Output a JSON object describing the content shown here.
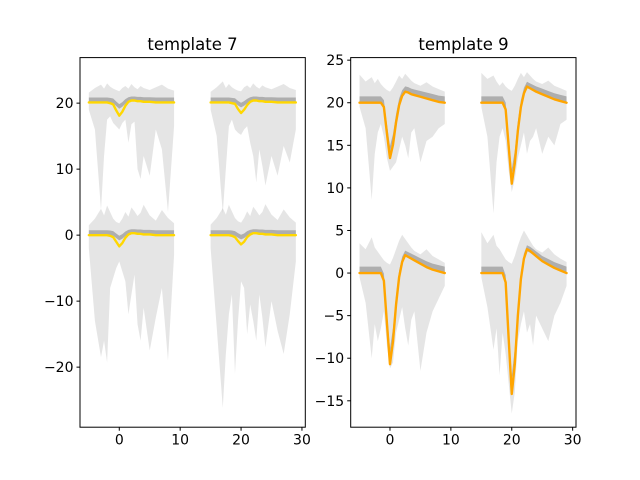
{
  "figure": {
    "background": "#ffffff",
    "text_color": "#000000",
    "axis_color": "#000000"
  },
  "chart_data": [
    {
      "type": "line",
      "title": "template 7",
      "line_color": "#FFD700",
      "outer_band_color": "rgba(0,0,0,0.10)",
      "inner_band_color": "rgba(0,0,0,0.24)",
      "xlim": [
        -6.45,
        30.55
      ],
      "ylim": [
        -29.1,
        26.9
      ],
      "xticks": [
        0,
        10,
        20,
        30
      ],
      "yticks": [
        -20,
        -10,
        0,
        10,
        20
      ],
      "t": [
        -5,
        -4,
        -3,
        -2.5,
        -2,
        -1.5,
        -1,
        -0.5,
        0,
        0.5,
        1,
        1.5,
        2,
        2.5,
        3,
        3.5,
        4,
        5,
        6,
        7,
        8,
        9
      ],
      "inner_band": {
        "offset_hi": 0.75,
        "offset_lo": 0.05,
        "follow": 0.5
      },
      "traces": [
        {
          "x_offset": 0,
          "baseline": 20.1,
          "mean": [
            20.1,
            20.1,
            20.1,
            20.1,
            20.1,
            20.0,
            19.8,
            18.9,
            18.1,
            18.7,
            19.6,
            20.2,
            20.4,
            20.4,
            20.3,
            20.3,
            20.2,
            20.2,
            20.1,
            20.1,
            20.1,
            20.1
          ],
          "outer_hi": [
            21.6,
            22.3,
            22.8,
            22.2,
            23.0,
            22.5,
            22.2,
            22.0,
            21.8,
            22.3,
            22.6,
            22.2,
            22.9,
            22.4,
            22.1,
            22.6,
            22.3,
            22.0,
            22.4,
            22.8,
            22.2,
            21.9
          ],
          "outer_lo": [
            19.0,
            16.0,
            3.8,
            12.0,
            17.5,
            18.0,
            17.0,
            16.5,
            16.0,
            17.0,
            17.5,
            14.0,
            16.8,
            17.2,
            10.0,
            8.5,
            12.0,
            9.0,
            16.0,
            13.0,
            3.5,
            16.5
          ]
        },
        {
          "x_offset": 20,
          "baseline": 20.1,
          "mean": [
            20.1,
            20.1,
            20.1,
            20.1,
            20.1,
            20.0,
            19.9,
            19.1,
            18.5,
            19.0,
            19.7,
            20.2,
            20.4,
            20.4,
            20.3,
            20.3,
            20.2,
            20.2,
            20.1,
            20.1,
            20.1,
            20.1
          ],
          "outer_hi": [
            21.7,
            22.4,
            23.3,
            22.3,
            22.9,
            22.4,
            22.1,
            21.9,
            21.8,
            22.4,
            22.7,
            22.3,
            23.0,
            22.5,
            22.2,
            22.7,
            22.4,
            22.1,
            22.5,
            22.9,
            22.3,
            22.0
          ],
          "outer_lo": [
            19.0,
            15.0,
            3.3,
            10.0,
            16.5,
            17.5,
            16.0,
            15.5,
            15.2,
            16.0,
            16.5,
            14.0,
            12.0,
            8.0,
            13.0,
            10.5,
            7.5,
            12.0,
            9.0,
            13.5,
            11.0,
            16.0
          ]
        },
        {
          "x_offset": 0,
          "baseline": 0,
          "mean": [
            0,
            0,
            0,
            0,
            0,
            -0.1,
            -0.3,
            -1.0,
            -1.7,
            -1.2,
            -0.4,
            0.1,
            0.3,
            0.3,
            0.2,
            0.2,
            0.1,
            0.1,
            0,
            0,
            0,
            0
          ],
          "outer_hi": [
            1.5,
            2.5,
            4.0,
            3.0,
            4.5,
            3.5,
            2.5,
            2.0,
            1.8,
            2.5,
            3.5,
            2.8,
            4.2,
            3.6,
            2.9,
            3.4,
            4.6,
            3.0,
            2.2,
            3.8,
            2.6,
            1.8
          ],
          "outer_lo": [
            -2.0,
            -13.0,
            -18.5,
            -16.0,
            -19.3,
            -8.0,
            -6.5,
            -5.0,
            -4.0,
            -5.5,
            -7.0,
            -12.0,
            -9.0,
            -6.0,
            -13.5,
            -16.0,
            -11.0,
            -17.5,
            -12.5,
            -8.0,
            -19.0,
            -3.0
          ]
        },
        {
          "x_offset": 20,
          "baseline": 0,
          "mean": [
            0,
            0,
            0,
            0,
            0,
            -0.1,
            -0.3,
            -0.9,
            -1.4,
            -1.0,
            -0.3,
            0.1,
            0.3,
            0.3,
            0.2,
            0.2,
            0.1,
            0.1,
            0,
            0,
            0,
            0
          ],
          "outer_hi": [
            1.6,
            2.6,
            4.1,
            3.1,
            4.6,
            3.6,
            2.6,
            2.1,
            1.9,
            2.6,
            3.6,
            2.9,
            4.3,
            3.7,
            3.0,
            3.5,
            4.7,
            3.1,
            2.3,
            3.9,
            2.7,
            1.9
          ],
          "outer_lo": [
            -2.0,
            -14.0,
            -26.2,
            -18.0,
            -12.0,
            -9.0,
            -21.0,
            -13.0,
            -7.0,
            -8.0,
            -15.0,
            -10.5,
            -13.0,
            -16.0,
            -9.0,
            -12.5,
            -17.0,
            -10.0,
            -14.5,
            -18.0,
            -12.0,
            -4.0
          ]
        }
      ]
    },
    {
      "type": "line",
      "title": "template 9",
      "line_color": "#FFA500",
      "outer_band_color": "rgba(0,0,0,0.10)",
      "inner_band_color": "rgba(0,0,0,0.24)",
      "xlim": [
        -6.45,
        30.55
      ],
      "ylim": [
        -18.1,
        25.3
      ],
      "xticks": [
        0,
        10,
        20,
        30
      ],
      "yticks": [
        -15,
        -10,
        -5,
        0,
        5,
        10,
        15,
        20,
        25
      ],
      "t": [
        -5,
        -4,
        -3,
        -2.5,
        -2,
        -1.5,
        -1,
        -0.5,
        0,
        0.5,
        1,
        1.5,
        2,
        2.5,
        3,
        3.5,
        4,
        5,
        6,
        7,
        8,
        9
      ],
      "inner_band": {
        "offset_hi": 0.75,
        "offset_lo": 0.05,
        "follow": 0.9
      },
      "traces": [
        {
          "x_offset": 0,
          "baseline": 20,
          "mean": [
            20,
            20,
            20,
            20,
            20,
            20,
            19.5,
            16.4,
            13.5,
            15.1,
            17.7,
            19.7,
            20.8,
            21.3,
            21.2,
            21.0,
            20.9,
            20.7,
            20.5,
            20.3,
            20.1,
            20
          ],
          "outer_hi": [
            23.3,
            22.5,
            23.0,
            22.3,
            22.8,
            22.2,
            21.8,
            21.5,
            21.3,
            21.8,
            22.5,
            23.2,
            22.8,
            23.4,
            23.0,
            22.6,
            22.3,
            22.0,
            22.4,
            21.9,
            21.6,
            21.3
          ],
          "outer_lo": [
            19.5,
            17.0,
            8.6,
            14.0,
            16.5,
            17.5,
            16.0,
            13.5,
            12.0,
            12.5,
            13.0,
            14.5,
            16.0,
            15.0,
            13.5,
            16.5,
            17.0,
            13.0,
            15.5,
            16.0,
            17.0,
            17.5
          ]
        },
        {
          "x_offset": 20,
          "baseline": 20,
          "mean": [
            20,
            20,
            20,
            20,
            20,
            20,
            19.2,
            14.8,
            10.5,
            12.9,
            16.7,
            19.5,
            21.1,
            21.9,
            21.7,
            21.5,
            21.3,
            21.0,
            20.7,
            20.4,
            20.2,
            20
          ],
          "outer_hi": [
            23.5,
            22.8,
            23.2,
            22.5,
            22.0,
            22.4,
            21.9,
            21.6,
            21.4,
            22.0,
            22.8,
            23.5,
            23.0,
            23.6,
            23.2,
            22.8,
            22.5,
            22.2,
            22.6,
            22.0,
            21.7,
            21.4
          ],
          "outer_lo": [
            19.5,
            16.0,
            7.0,
            13.0,
            16.0,
            17.0,
            15.5,
            12.0,
            9.5,
            11.0,
            13.5,
            15.0,
            16.5,
            14.0,
            15.5,
            16.0,
            17.0,
            14.0,
            16.0,
            15.0,
            17.5,
            18.0
          ]
        },
        {
          "x_offset": 0,
          "baseline": 0,
          "mean": [
            0,
            0,
            0,
            0,
            0,
            0,
            -0.9,
            -5.9,
            -10.7,
            -8.0,
            -3.7,
            -0.5,
            1.3,
            2.1,
            1.9,
            1.7,
            1.5,
            1.1,
            0.7,
            0.4,
            0.2,
            0
          ],
          "outer_hi": [
            3.5,
            2.8,
            4.2,
            3.0,
            2.5,
            2.0,
            1.5,
            1.2,
            1.0,
            1.8,
            2.8,
            3.8,
            4.5,
            4.0,
            3.5,
            3.0,
            2.6,
            2.2,
            2.8,
            2.0,
            1.6,
            1.2
          ],
          "outer_lo": [
            -0.5,
            -3.5,
            -10.0,
            -6.0,
            -8.0,
            -6.5,
            -4.5,
            -8.5,
            -11.2,
            -10.5,
            -7.0,
            -5.5,
            -4.0,
            -6.5,
            -8.5,
            -5.5,
            -4.5,
            -11.5,
            -7.0,
            -4.5,
            -3.0,
            -1.5
          ]
        },
        {
          "x_offset": 20,
          "baseline": 0,
          "mean": [
            0,
            0,
            0,
            0,
            0,
            0,
            -1.1,
            -7.8,
            -14.2,
            -10.7,
            -5.0,
            -0.7,
            1.7,
            2.8,
            2.6,
            2.3,
            2.0,
            1.4,
            1.0,
            0.6,
            0.3,
            0
          ],
          "outer_hi": [
            4.8,
            3.5,
            4.5,
            3.2,
            2.8,
            2.2,
            1.6,
            1.3,
            1.1,
            2.0,
            3.2,
            4.2,
            5.0,
            4.4,
            3.8,
            3.2,
            2.8,
            2.4,
            3.0,
            2.2,
            1.7,
            1.3
          ],
          "outer_lo": [
            -0.5,
            -4.0,
            -9.0,
            -6.5,
            -12.0,
            -7.0,
            -9.5,
            -13.0,
            -16.5,
            -14.0,
            -8.0,
            -6.0,
            -4.5,
            -7.0,
            -6.0,
            -8.5,
            -5.0,
            -6.5,
            -8.0,
            -5.0,
            -3.5,
            -1.5
          ]
        }
      ]
    }
  ]
}
